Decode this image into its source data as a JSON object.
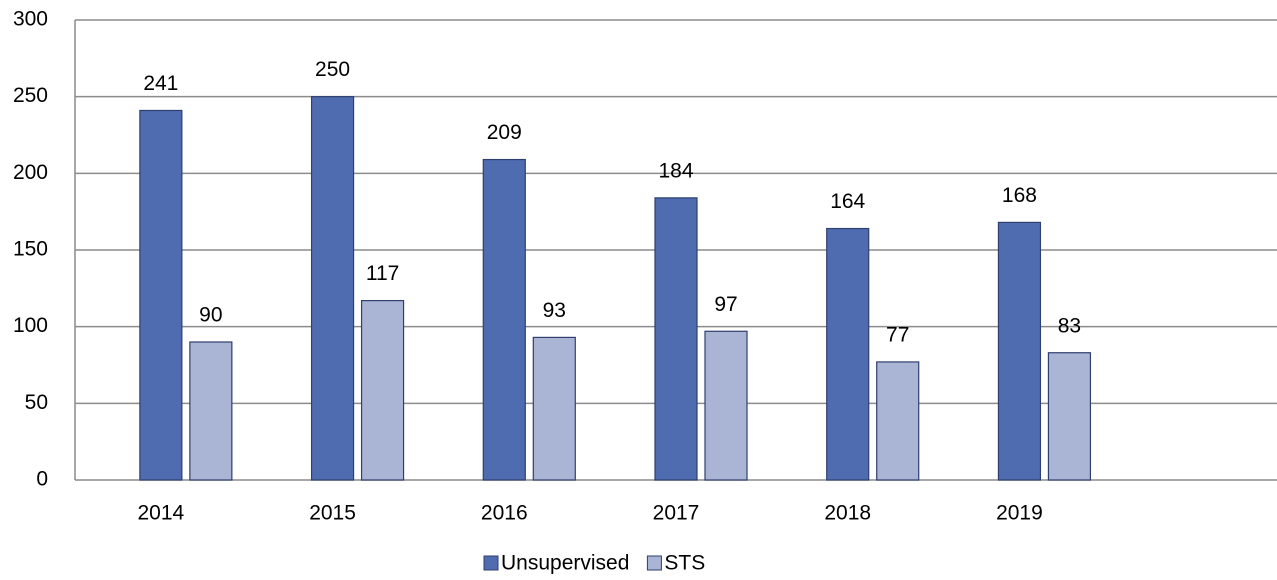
{
  "chart_data": {
    "type": "bar",
    "categories": [
      "2014",
      "2015",
      "2016",
      "2017",
      "2018",
      "2019",
      null
    ],
    "series": [
      {
        "name": "Unsupervised",
        "color": "#4f6cb1",
        "values": [
          241,
          250,
          209,
          184,
          164,
          168,
          null
        ]
      },
      {
        "name": "STS",
        "color": "#aab4d5",
        "values": [
          90,
          117,
          93,
          97,
          77,
          83,
          null
        ]
      }
    ],
    "ylim": [
      0,
      300
    ],
    "yticks": [
      0,
      50,
      100,
      150,
      200,
      250,
      300
    ],
    "grid": true,
    "legend": "bottom"
  }
}
